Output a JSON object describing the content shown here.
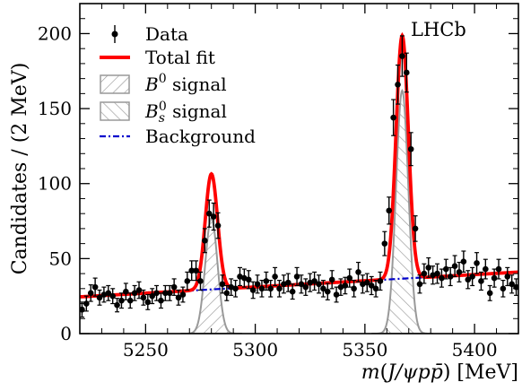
{
  "chart_data": {
    "type": "scatter",
    "xlabel": "m(J/ψpp̄) [MeV]",
    "ylabel": "Candidates / (2 MeV)",
    "experiment_label": "LHCb",
    "xlim": [
      5220,
      5420
    ],
    "ylim": [
      0,
      220
    ],
    "x_ticks": [
      5250,
      5300,
      5350,
      5400
    ],
    "y_ticks": [
      0,
      50,
      100,
      150,
      200
    ],
    "legend_position": "top-left",
    "legend": [
      {
        "key": "data",
        "label": "Data"
      },
      {
        "key": "total",
        "label": "Total fit"
      },
      {
        "key": "b0",
        "label": "B",
        "sup": "0",
        "suffix": " signal"
      },
      {
        "key": "bs",
        "label": "B",
        "sub": "s",
        "sup": "0",
        "suffix": " signal"
      },
      {
        "key": "bkg",
        "label": "Background"
      }
    ],
    "colors": {
      "data": "#000000",
      "total": "#ff0000",
      "signal": "#999999",
      "background": "#0000cc"
    },
    "model": {
      "b0": {
        "mean": 5280,
        "sigma": 2.8,
        "peak": 77
      },
      "bs": {
        "mean": 5367,
        "sigma": 2.8,
        "peak": 162
      },
      "background": {
        "y_at_xmin": 24.5,
        "slope_per_mev": 0.0825
      }
    },
    "series": [
      {
        "name": "Data",
        "x": [
          5221,
          5223,
          5225,
          5227,
          5229,
          5231,
          5233,
          5235,
          5237,
          5239,
          5241,
          5243,
          5245,
          5247,
          5249,
          5251,
          5253,
          5255,
          5257,
          5259,
          5261,
          5263,
          5265,
          5267,
          5269,
          5271,
          5273,
          5275,
          5277,
          5279,
          5281,
          5283,
          5285,
          5287,
          5289,
          5291,
          5293,
          5295,
          5297,
          5299,
          5301,
          5303,
          5305,
          5307,
          5309,
          5311,
          5313,
          5315,
          5317,
          5319,
          5321,
          5323,
          5325,
          5327,
          5329,
          5331,
          5333,
          5335,
          5337,
          5339,
          5341,
          5343,
          5345,
          5347,
          5349,
          5351,
          5353,
          5355,
          5357,
          5359,
          5361,
          5363,
          5365,
          5367,
          5369,
          5371,
          5373,
          5375,
          5377,
          5379,
          5381,
          5383,
          5385,
          5387,
          5389,
          5391,
          5393,
          5395,
          5397,
          5399,
          5401,
          5403,
          5405,
          5407,
          5409,
          5411,
          5413,
          5415,
          5417,
          5419
        ],
        "y": [
          16,
          20,
          27,
          31,
          24,
          26,
          27,
          25,
          19,
          22,
          28,
          22,
          27,
          29,
          24,
          21,
          25,
          27,
          22,
          27,
          27,
          31,
          24,
          26,
          35,
          42,
          42,
          35,
          62,
          80,
          78,
          72,
          33,
          27,
          31,
          30,
          38,
          37,
          36,
          29,
          33,
          30,
          35,
          30,
          38,
          30,
          33,
          34,
          28,
          38,
          33,
          31,
          34,
          35,
          33,
          30,
          28,
          36,
          26,
          31,
          32,
          37,
          30,
          41,
          33,
          34,
          32,
          30,
          35,
          60,
          82,
          144,
          166,
          185,
          174,
          123,
          70,
          33,
          40,
          44,
          39,
          40,
          37,
          43,
          38,
          45,
          41,
          48,
          36,
          38,
          47,
          35,
          43,
          27,
          37,
          43,
          30,
          38,
          33,
          31
        ],
        "err": [
          5,
          5,
          5.5,
          6,
          5,
          5,
          5,
          5,
          4.5,
          5,
          5.5,
          5,
          5,
          5.5,
          5,
          5,
          5,
          5,
          5,
          5,
          5,
          5.5,
          5,
          5,
          6,
          6.5,
          6.5,
          6,
          8,
          9,
          9,
          8.5,
          6,
          5,
          5.5,
          5.5,
          6,
          6,
          6,
          5.5,
          6,
          5.5,
          6,
          5.5,
          6,
          5.5,
          6,
          6,
          5,
          6,
          6,
          5.5,
          6,
          6,
          6,
          5.5,
          5.5,
          6,
          5,
          5.5,
          5.5,
          6,
          5.5,
          6.5,
          6,
          6,
          6,
          5.5,
          6,
          8,
          9,
          12,
          13,
          13.5,
          13,
          11,
          8.5,
          6,
          6.5,
          6.5,
          6,
          6.5,
          6,
          6.5,
          6,
          7,
          6.5,
          7,
          6,
          6,
          7,
          6,
          6.5,
          5,
          6,
          6.5,
          5.5,
          6,
          6,
          5.5
        ]
      }
    ]
  }
}
